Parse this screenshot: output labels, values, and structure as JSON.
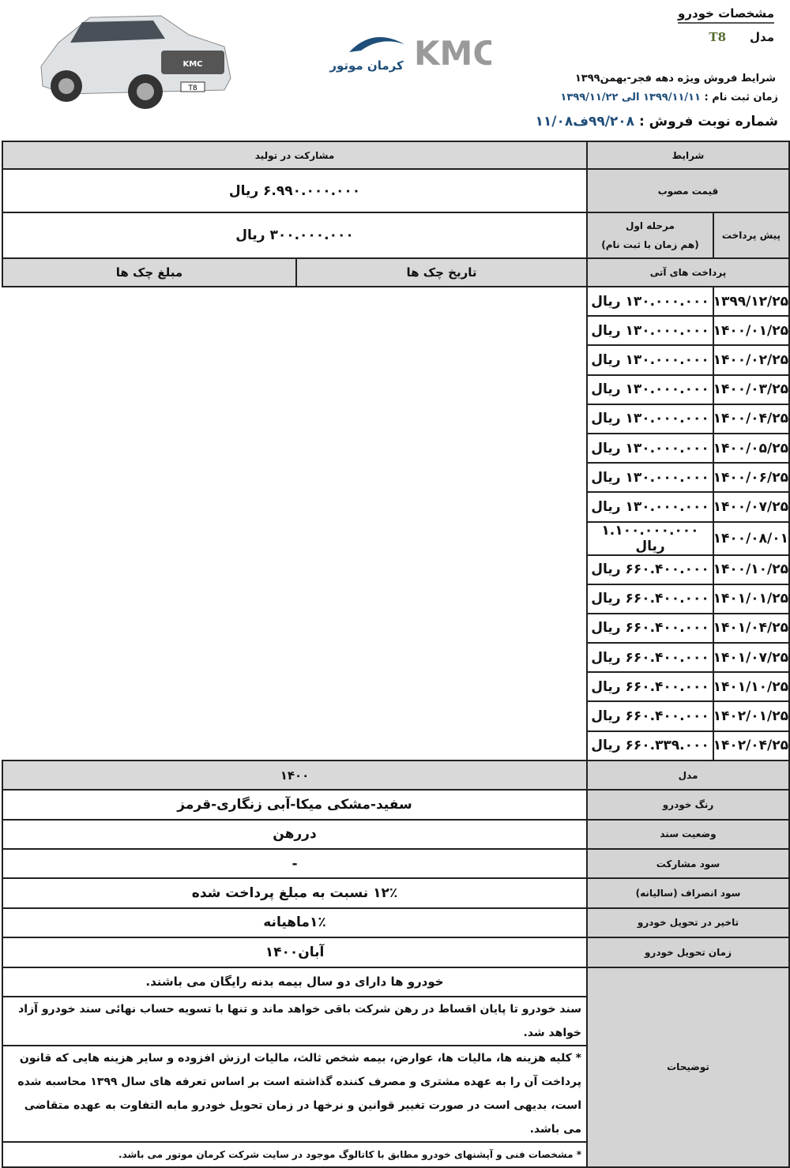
{
  "header": {
    "title": "مشخصات خودرو",
    "model_label": "مدل",
    "model_value": "T8",
    "sale_terms": "شرایط  فروش  ویژه دهه فجر-بهمن۱۳۹۹",
    "reg_label": "زمان ثبت نام :",
    "reg_value": "۱۳۹۹/۱۱/۱۱ الی ۱۳۹۹/۱۱/۲۲",
    "num_label": "شماره نوبت فروش :",
    "num_value": "۹۹/۲۰۸ف۱۱/۰۸",
    "logo_text": "KMC",
    "logo_sub": "کرمان موتور",
    "car_badge": "T8"
  },
  "table": {
    "conditions_label": "شرایط",
    "conditions_value": "مشارکت در تولید",
    "price_label": "قیمت مصوب",
    "price_value": "۶.۹۹۰.۰۰۰.۰۰۰ ریال",
    "prepay_label": "پیش پرداخت",
    "prepay_stage": "مرحله اول",
    "prepay_stage_note": "(هم زمان با ثبت نام)",
    "prepay_value": "۳۰۰.۰۰۰.۰۰۰ ریال",
    "future_label": "پرداخت های آتی",
    "check_date_header": "تاریخ چک ها",
    "check_amount_header": "مبلغ چک ها",
    "checks": [
      {
        "date": "۱۳۹۹/۱۲/۲۵",
        "amount": "۱۳۰.۰۰۰.۰۰۰ ریال"
      },
      {
        "date": "۱۴۰۰/۰۱/۲۵",
        "amount": "۱۳۰.۰۰۰.۰۰۰ ریال"
      },
      {
        "date": "۱۴۰۰/۰۲/۲۵",
        "amount": "۱۳۰.۰۰۰.۰۰۰ ریال"
      },
      {
        "date": "۱۴۰۰/۰۳/۲۵",
        "amount": "۱۳۰.۰۰۰.۰۰۰ ریال"
      },
      {
        "date": "۱۴۰۰/۰۴/۲۵",
        "amount": "۱۳۰.۰۰۰.۰۰۰ ریال"
      },
      {
        "date": "۱۴۰۰/۰۵/۲۵",
        "amount": "۱۳۰.۰۰۰.۰۰۰ ریال"
      },
      {
        "date": "۱۴۰۰/۰۶/۲۵",
        "amount": "۱۳۰.۰۰۰.۰۰۰ ریال"
      },
      {
        "date": "۱۴۰۰/۰۷/۲۵",
        "amount": "۱۳۰.۰۰۰.۰۰۰ ریال"
      },
      {
        "date": "۱۴۰۰/۰۸/۰۱",
        "amount": "۱.۱۰۰.۰۰۰.۰۰۰ ریال"
      },
      {
        "date": "۱۴۰۰/۱۰/۲۵",
        "amount": "۶۶۰.۴۰۰.۰۰۰ ریال"
      },
      {
        "date": "۱۴۰۱/۰۱/۲۵",
        "amount": "۶۶۰.۴۰۰.۰۰۰ ریال"
      },
      {
        "date": "۱۴۰۱/۰۴/۲۵",
        "amount": "۶۶۰.۴۰۰.۰۰۰ ریال"
      },
      {
        "date": "۱۴۰۱/۰۷/۲۵",
        "amount": "۶۶۰.۴۰۰.۰۰۰ ریال"
      },
      {
        "date": "۱۴۰۱/۱۰/۲۵",
        "amount": "۶۶۰.۴۰۰.۰۰۰ ریال"
      },
      {
        "date": "۱۴۰۲/۰۱/۲۵",
        "amount": "۶۶۰.۴۰۰.۰۰۰ ریال"
      },
      {
        "date": "۱۴۰۲/۰۴/۲۵",
        "amount": "۶۶۰.۳۳۹.۰۰۰ ریال"
      }
    ],
    "rows": [
      {
        "label": "مدل",
        "value": "۱۴۰۰"
      },
      {
        "label": "رنگ خودرو",
        "value": "سفید-مشکی میکا-آبی زنگاری-قرمز"
      },
      {
        "label": "وضعیت سند",
        "value": "دررهن"
      },
      {
        "label": "سود مشارکت",
        "value": "-"
      },
      {
        "label": "سود انصراف (سالیانه)",
        "value": "۱۲٪ نسبت به مبلغ پرداخت شده"
      },
      {
        "label": "تاخیر در تحویل خودرو",
        "value": "۱٪ماهیانه"
      },
      {
        "label": "زمان تحویل خودرو",
        "value": "آبان۱۴۰۰"
      }
    ],
    "notes_label": "توضیحات",
    "notes": [
      "خودرو ها دارای دو سال بیمه بدنه رایگان می باشند.",
      "سند خودرو تا پایان اقساط در رهن شرکت باقی خواهد ماند و تنها با تسویه حساب نهائی سند خودرو آزاد خواهد شد.",
      "* کلیه هزینه ها، مالیات ها، عوارض، بیمه شخص ثالث، مالیات ارزش افزوده و سایر هزینه هایی که قانون پرداخت آن را به عهده مشتری و مصرف کننده گذاشته است بر اساس تعرفه های سال ۱۳۹۹ محاسبه شده است، بدیهی است در صورت تغییر قوانین و نرخها در زمان تحویل خودرو مابه التفاوت به عهده متقاضی می باشد.",
      "* مشخصات فنی و آپشنهای خودرو مطابق با کاتالوگ موجود در سایت شرکت کرمان موتور می باشد."
    ]
  }
}
